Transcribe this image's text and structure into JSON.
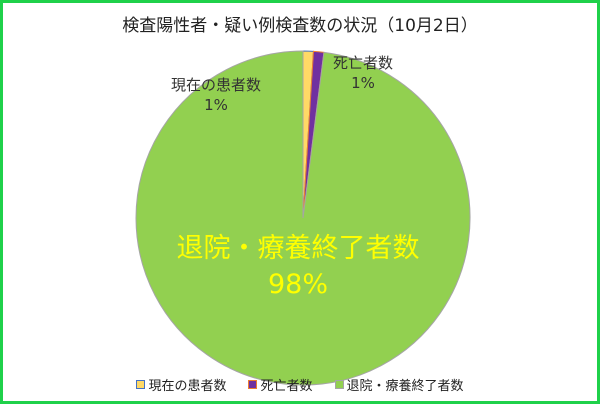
{
  "chart_data": {
    "type": "pie",
    "title": "検査陽性者・疑い例検査数の状況（10月2日）",
    "categories": [
      "現在の患者数",
      "死亡者数",
      "退院・療養終了者数"
    ],
    "values": [
      1,
      1,
      98
    ],
    "labels": [
      "1%",
      "1%",
      "98%"
    ],
    "colors": [
      "#ffd966",
      "#7030a0",
      "#92d050"
    ],
    "legend": "bottom"
  }
}
